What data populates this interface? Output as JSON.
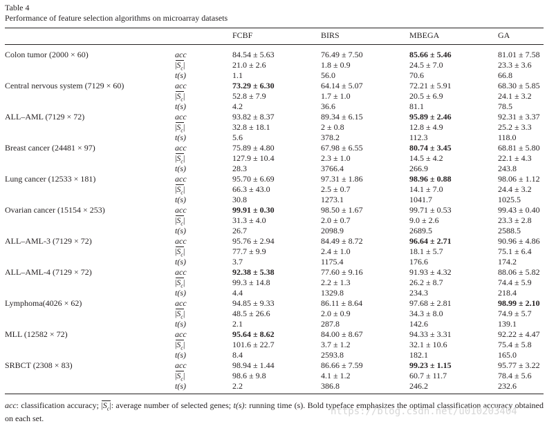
{
  "table_label": "Table 4",
  "table_title": "Performance of feature selection algorithms on microarray datasets",
  "columns": [
    "FCBF",
    "BIRS",
    "MBEGA",
    "GA"
  ],
  "metrics": [
    "acc",
    "|Sc|",
    "t(s)"
  ],
  "rows": [
    {
      "dataset": "Colon tumor (2000 × 60)",
      "acc": [
        "84.54 ± 5.63",
        "76.49 ± 7.50",
        "85.66 ± 5.46",
        "81.01 ± 7.58"
      ],
      "best": 2,
      "sc": [
        "21.0 ± 2.6",
        "1.8 ± 0.9",
        "24.5 ± 7.0",
        "23.3 ± 3.6"
      ],
      "t": [
        "1.1",
        "56.0",
        "70.6",
        "66.8"
      ]
    },
    {
      "dataset": "Central nervous system (7129 × 60)",
      "acc": [
        "73.29 ± 6.30",
        "64.14 ± 5.07",
        "72.21 ± 5.91",
        "68.30 ± 5.85"
      ],
      "best": 0,
      "sc": [
        "52.8 ± 7.9",
        "1.7 ± 1.0",
        "20.5 ± 6.9",
        "24.1 ± 3.2"
      ],
      "t": [
        "4.2",
        "36.6",
        "81.1",
        "78.5"
      ]
    },
    {
      "dataset": "ALL–AML (7129 × 72)",
      "acc": [
        "93.82 ± 8.37",
        "89.34 ± 6.15",
        "95.89 ± 2.46",
        "92.31 ± 3.37"
      ],
      "best": 2,
      "sc": [
        "32.8 ± 18.1",
        "2 ± 0.8",
        "12.8 ± 4.9",
        "25.2 ± 3.3"
      ],
      "t": [
        "5.6",
        "378.2",
        "112.3",
        "118.0"
      ]
    },
    {
      "dataset": "Breast cancer (24481 × 97)",
      "acc": [
        "75.89 ± 4.80",
        "67.98 ± 6.55",
        "80.74 ± 3.45",
        "68.81 ± 5.80"
      ],
      "best": 2,
      "sc": [
        "127.9 ± 10.4",
        "2.3 ± 1.0",
        "14.5 ± 4.2",
        "22.1 ± 4.3"
      ],
      "t": [
        "28.3",
        "3766.4",
        "266.9",
        "243.8"
      ]
    },
    {
      "dataset": "Lung cancer (12533 × 181)",
      "acc": [
        "95.70 ± 6.69",
        "97.31 ± 1.86",
        "98.96 ± 0.88",
        "98.06 ± 1.12"
      ],
      "best": 2,
      "sc": [
        "66.3 ± 43.0",
        "2.5 ± 0.7",
        "14.1 ± 7.0",
        "24.4 ± 3.2"
      ],
      "t": [
        "30.8",
        "1273.1",
        "1041.7",
        "1025.5"
      ]
    },
    {
      "dataset": "Ovarian cancer (15154 × 253)",
      "acc": [
        "99.91 ± 0.30",
        "98.50 ± 1.67",
        "99.71 ± 0.53",
        "99.43 ± 0.40"
      ],
      "best": 0,
      "sc": [
        "31.3 ± 4.0",
        "2.0 ± 0.7",
        "9.0 ± 2.6",
        "23.3 ± 2.8"
      ],
      "t": [
        "26.7",
        "2098.9",
        "2689.5",
        "2588.5"
      ]
    },
    {
      "dataset": "ALL–AML-3 (7129 × 72)",
      "acc": [
        "95.76 ± 2.94",
        "84.49 ± 8.72",
        "96.64 ± 2.71",
        "90.96 ± 4.86"
      ],
      "best": 2,
      "sc": [
        "77.7 ± 9.9",
        "2.4 ± 1.0",
        "18.1 ± 5.7",
        "75.1 ± 6.4"
      ],
      "t": [
        "3.7",
        "1175.4",
        "176.6",
        "174.2"
      ]
    },
    {
      "dataset": "ALL–AML-4 (7129 × 72)",
      "acc": [
        "92.38 ± 5.38",
        "77.60 ± 9.16",
        "91.93 ± 4.32",
        "88.06 ± 5.82"
      ],
      "best": 0,
      "sc": [
        "99.3 ± 14.8",
        "2.2 ± 1.3",
        "26.2 ± 8.7",
        "74.4 ± 5.9"
      ],
      "t": [
        "4.4",
        "1329.8",
        "234.3",
        "218.4"
      ]
    },
    {
      "dataset": "Lymphoma(4026 × 62)",
      "acc": [
        "94.85 ± 9.33",
        "86.11 ± 8.64",
        "97.68 ± 2.81",
        "98.99 ± 2.10"
      ],
      "best": 3,
      "sc": [
        "48.5 ± 26.6",
        "2.0 ± 0.9",
        "34.3 ± 8.0",
        "74.9 ± 5.7"
      ],
      "t": [
        "2.1",
        "287.8",
        "142.6",
        "139.1"
      ]
    },
    {
      "dataset": "MLL (12582 × 72)",
      "acc": [
        "95.64 ± 8.62",
        "84.00 ± 8.67",
        "94.33 ± 3.31",
        "92.22 ± 4.47"
      ],
      "best": 0,
      "sc": [
        "101.6 ± 22.7",
        "3.7 ± 1.2",
        "32.1 ± 10.6",
        "75.4 ± 5.8"
      ],
      "t": [
        "8.4",
        "2593.8",
        "182.1",
        "165.0"
      ]
    },
    {
      "dataset": "SRBCT (2308 × 83)",
      "acc": [
        "98.94 ± 1.44",
        "86.66 ± 7.59",
        "99.23 ± 1.15",
        "95.77 ± 3.22"
      ],
      "best": 2,
      "sc": [
        "98.6 ± 9.8",
        "4.1 ± 1.2",
        "60.7 ± 11.7",
        "78.4 ± 5.6"
      ],
      "t": [
        "2.2",
        "386.8",
        "246.2",
        "232.6"
      ]
    }
  ],
  "footnote": {
    "acc_term": "acc",
    "acc_desc": ": classification accuracy; ",
    "sc_term": "|Sc|",
    "sc_desc": ": average number of selected genes; ",
    "t_term": "t(s)",
    "t_desc": ": running time (s). Bold typeface emphasizes the optimal classification accuracy obtained on each set."
  },
  "watermark": "https://blog.csdn.net/u010203404"
}
